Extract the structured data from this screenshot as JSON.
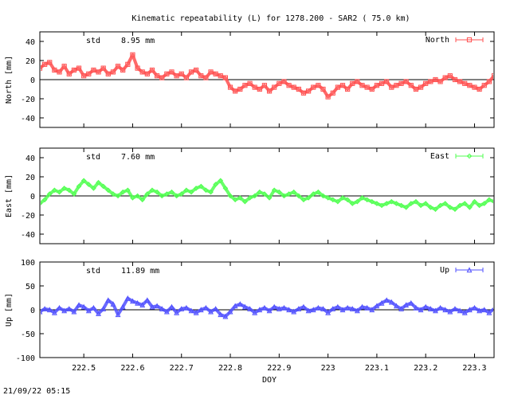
{
  "title": "Kinematic repeatability (L) for 1278.200 - SAR2  ( 75.0 km)",
  "footer": "21/09/22 05:15",
  "xlabel": "DOY",
  "colors": {
    "north": "#ff5050",
    "east": "#50ff50",
    "up": "#5050ff"
  },
  "chart_data": [
    {
      "type": "line",
      "series": [
        {
          "name": "North",
          "x": [
            222.41,
            222.42,
            222.43,
            222.44,
            222.45,
            222.46,
            222.47,
            222.48,
            222.49,
            222.5,
            222.51,
            222.52,
            222.53,
            222.54,
            222.55,
            222.56,
            222.57,
            222.58,
            222.59,
            222.6,
            222.61,
            222.62,
            222.63,
            222.64,
            222.65,
            222.66,
            222.67,
            222.68,
            222.69,
            222.7,
            222.71,
            222.72,
            222.73,
            222.74,
            222.75,
            222.76,
            222.77,
            222.78,
            222.79,
            222.8,
            222.81,
            222.82,
            222.83,
            222.84,
            222.85,
            222.86,
            222.87,
            222.88,
            222.89,
            222.9,
            222.91,
            222.92,
            222.93,
            222.94,
            222.95,
            222.96,
            222.97,
            222.98,
            222.99,
            223.0,
            223.01,
            223.02,
            223.03,
            223.04,
            223.05,
            223.06,
            223.07,
            223.08,
            223.09,
            223.1,
            223.11,
            223.12,
            223.13,
            223.14,
            223.15,
            223.16,
            223.17,
            223.18,
            223.19,
            223.2,
            223.21,
            223.22,
            223.23,
            223.24,
            223.25,
            223.26,
            223.27,
            223.28,
            223.29,
            223.3,
            223.31,
            223.32,
            223.33,
            223.34
          ],
          "values": [
            12,
            16,
            18,
            10,
            8,
            14,
            6,
            10,
            12,
            4,
            6,
            10,
            8,
            12,
            6,
            8,
            14,
            10,
            16,
            26,
            12,
            8,
            6,
            10,
            4,
            2,
            6,
            8,
            4,
            6,
            2,
            8,
            10,
            4,
            2,
            8,
            6,
            4,
            2,
            -8,
            -12,
            -10,
            -6,
            -4,
            -8,
            -10,
            -6,
            -12,
            -8,
            -4,
            -2,
            -6,
            -8,
            -10,
            -14,
            -12,
            -8,
            -6,
            -10,
            -18,
            -14,
            -8,
            -6,
            -10,
            -4,
            -2,
            -6,
            -8,
            -10,
            -6,
            -4,
            -2,
            -8,
            -6,
            -4,
            -2,
            -6,
            -10,
            -8,
            -4,
            -2,
            0,
            -2,
            2,
            4,
            0,
            -2,
            -4,
            -6,
            -8,
            -10,
            -6,
            -2,
            4
          ]
        }
      ],
      "ylabel": "North [mm]",
      "ylim": [
        -50,
        50
      ],
      "yticks": [
        -40,
        -20,
        0,
        20,
        40
      ],
      "std_label": "std",
      "std_value": "8.95 mm",
      "marker": "square"
    },
    {
      "type": "line",
      "series": [
        {
          "name": "East",
          "x": [
            222.41,
            222.42,
            222.43,
            222.44,
            222.45,
            222.46,
            222.47,
            222.48,
            222.49,
            222.5,
            222.51,
            222.52,
            222.53,
            222.54,
            222.55,
            222.56,
            222.57,
            222.58,
            222.59,
            222.6,
            222.61,
            222.62,
            222.63,
            222.64,
            222.65,
            222.66,
            222.67,
            222.68,
            222.69,
            222.7,
            222.71,
            222.72,
            222.73,
            222.74,
            222.75,
            222.76,
            222.77,
            222.78,
            222.79,
            222.8,
            222.81,
            222.82,
            222.83,
            222.84,
            222.85,
            222.86,
            222.87,
            222.88,
            222.89,
            222.9,
            222.91,
            222.92,
            222.93,
            222.94,
            222.95,
            222.96,
            222.97,
            222.98,
            222.99,
            223.0,
            223.01,
            223.02,
            223.03,
            223.04,
            223.05,
            223.06,
            223.07,
            223.08,
            223.09,
            223.1,
            223.11,
            223.12,
            223.13,
            223.14,
            223.15,
            223.16,
            223.17,
            223.18,
            223.19,
            223.2,
            223.21,
            223.22,
            223.23,
            223.24,
            223.25,
            223.26,
            223.27,
            223.28,
            223.29,
            223.3,
            223.31,
            223.32,
            223.33,
            223.34
          ],
          "values": [
            -8,
            -4,
            2,
            6,
            4,
            8,
            6,
            2,
            10,
            16,
            12,
            8,
            14,
            10,
            6,
            2,
            0,
            4,
            6,
            -2,
            0,
            -4,
            2,
            6,
            4,
            0,
            2,
            4,
            0,
            2,
            6,
            4,
            8,
            10,
            6,
            4,
            12,
            16,
            8,
            0,
            -4,
            -2,
            -6,
            -2,
            0,
            4,
            2,
            -2,
            6,
            4,
            0,
            2,
            4,
            0,
            -4,
            -2,
            2,
            4,
            0,
            -2,
            -4,
            -6,
            -2,
            -4,
            -8,
            -6,
            -2,
            -4,
            -6,
            -8,
            -10,
            -8,
            -6,
            -8,
            -10,
            -12,
            -8,
            -6,
            -10,
            -8,
            -12,
            -14,
            -10,
            -8,
            -12,
            -14,
            -10,
            -8,
            -12,
            -6,
            -10,
            -8,
            -4,
            -6
          ]
        }
      ],
      "ylabel": "East [mm]",
      "ylim": [
        -50,
        50
      ],
      "yticks": [
        -40,
        -20,
        0,
        20,
        40
      ],
      "std_label": "std",
      "std_value": "7.60 mm",
      "marker": "diamond"
    },
    {
      "type": "line",
      "series": [
        {
          "name": "Up",
          "x": [
            222.41,
            222.42,
            222.43,
            222.44,
            222.45,
            222.46,
            222.47,
            222.48,
            222.49,
            222.5,
            222.51,
            222.52,
            222.53,
            222.54,
            222.55,
            222.56,
            222.57,
            222.58,
            222.59,
            222.6,
            222.61,
            222.62,
            222.63,
            222.64,
            222.65,
            222.66,
            222.67,
            222.68,
            222.69,
            222.7,
            222.71,
            222.72,
            222.73,
            222.74,
            222.75,
            222.76,
            222.77,
            222.78,
            222.79,
            222.8,
            222.81,
            222.82,
            222.83,
            222.84,
            222.85,
            222.86,
            222.87,
            222.88,
            222.89,
            222.9,
            222.91,
            222.92,
            222.93,
            222.94,
            222.95,
            222.96,
            222.97,
            222.98,
            222.99,
            223.0,
            223.01,
            223.02,
            223.03,
            223.04,
            223.05,
            223.06,
            223.07,
            223.08,
            223.09,
            223.1,
            223.11,
            223.12,
            223.13,
            223.14,
            223.15,
            223.16,
            223.17,
            223.18,
            223.19,
            223.2,
            223.21,
            223.22,
            223.23,
            223.24,
            223.25,
            223.26,
            223.27,
            223.28,
            223.29,
            223.3,
            223.31,
            223.32,
            223.33,
            223.34
          ],
          "values": [
            -4,
            2,
            0,
            -6,
            4,
            -2,
            2,
            -4,
            10,
            6,
            -2,
            4,
            -8,
            2,
            20,
            12,
            -10,
            6,
            24,
            18,
            14,
            10,
            20,
            6,
            8,
            2,
            -4,
            6,
            -6,
            2,
            4,
            -2,
            -6,
            0,
            4,
            -4,
            2,
            -10,
            -14,
            -4,
            8,
            12,
            6,
            2,
            -6,
            0,
            4,
            -2,
            6,
            2,
            4,
            0,
            -4,
            2,
            6,
            -2,
            0,
            4,
            2,
            -6,
            2,
            6,
            0,
            4,
            2,
            -2,
            6,
            4,
            0,
            8,
            14,
            20,
            16,
            8,
            2,
            10,
            14,
            4,
            0,
            6,
            2,
            -2,
            4,
            0,
            -4,
            2,
            -2,
            -6,
            0,
            4,
            -2,
            0,
            -6,
            2
          ]
        }
      ],
      "ylabel": "Up [mm]",
      "ylim": [
        -100,
        100
      ],
      "yticks": [
        -100,
        -50,
        0,
        50,
        100
      ],
      "std_label": "std",
      "std_value": "11.89 mm",
      "marker": "triangle"
    }
  ],
  "xticks": [
    222.5,
    222.6,
    222.7,
    222.8,
    222.9,
    223,
    223.1,
    223.2,
    223.3
  ],
  "xlim": [
    222.41,
    223.34
  ]
}
